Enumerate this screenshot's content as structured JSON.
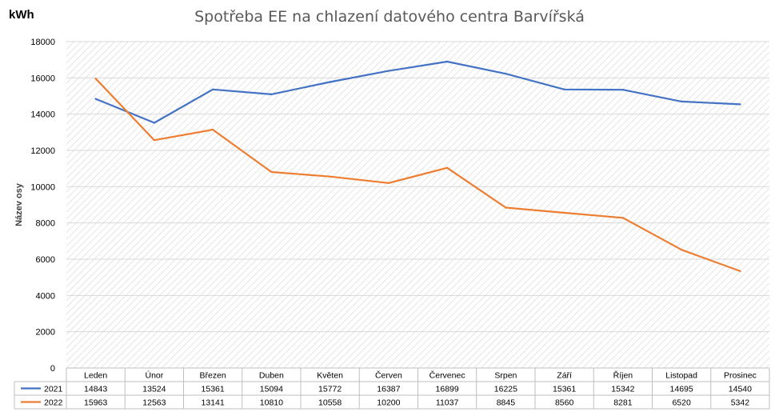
{
  "title": "Spotřeba EE na chlazení datového centra Barvířská",
  "unit_label": "kWh",
  "chart_data": {
    "type": "line",
    "title": "Spotřeba EE na chlazení datového centra Barvířská",
    "ylabel": "Název osy",
    "xlabel": "",
    "ylim": [
      0,
      18000
    ],
    "ytick_step": 2000,
    "yticks": [
      "0",
      "2000",
      "4000",
      "6000",
      "8000",
      "10000",
      "12000",
      "14000",
      "16000",
      "18000"
    ],
    "grid": true,
    "legend": "data-table",
    "categories": [
      "Leden",
      "Únor",
      "Březen",
      "Duben",
      "Květen",
      "Červen",
      "Červenec",
      "Srpen",
      "Září",
      "Říjen",
      "Listopad",
      "Prosinec"
    ],
    "series": [
      {
        "name": "2021",
        "color": "#4472C4",
        "values": [
          14843,
          13524,
          15361,
          15094,
          15772,
          16387,
          16899,
          16225,
          15361,
          15342,
          14695,
          14540
        ]
      },
      {
        "name": "2022",
        "color": "#ED7D31",
        "values": [
          15963,
          12563,
          13141,
          10810,
          10558,
          10200,
          11037,
          8845,
          8560,
          8281,
          6520,
          5342
        ]
      }
    ]
  }
}
